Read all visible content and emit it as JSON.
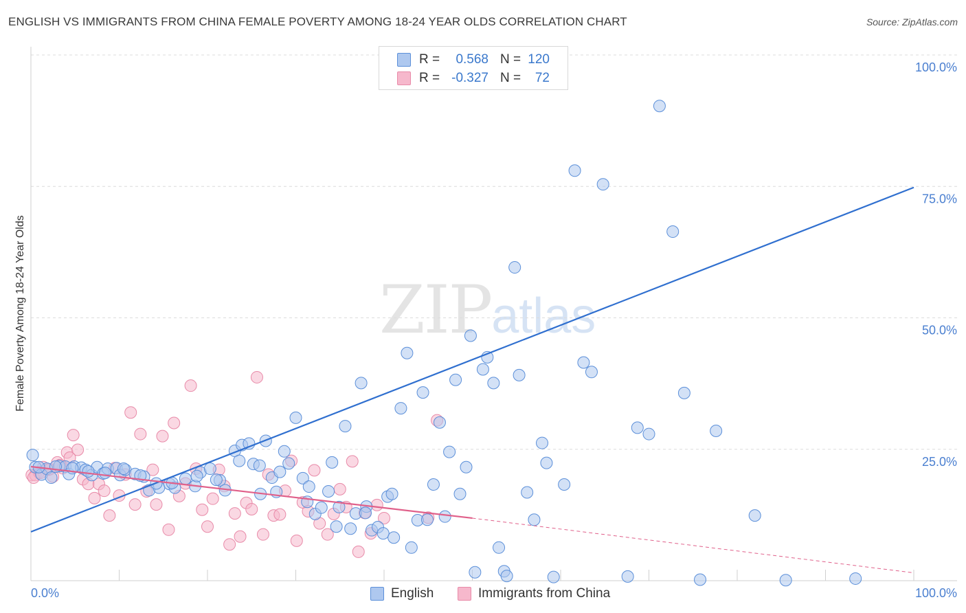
{
  "title": "ENGLISH VS IMMIGRANTS FROM CHINA FEMALE POVERTY AMONG 18-24 YEAR OLDS CORRELATION CHART",
  "source": "Source: ZipAtlas.com",
  "watermark": {
    "zip": "ZIP",
    "atlas": "atlas"
  },
  "colors": {
    "english_fill": "#aec8ef",
    "english_stroke": "#5b8fd9",
    "english_line": "#2f6fcf",
    "china_fill": "#f6b8cc",
    "china_stroke": "#e88aa8",
    "china_line": "#e0608a",
    "grid": "#dcdcdc",
    "tick_text": "#4a7fd0"
  },
  "legend": {
    "rows": [
      {
        "r_label": "R =",
        "r_value": "0.568",
        "n_label": "N =",
        "n_value": "120"
      },
      {
        "r_label": "R =",
        "r_value": "-0.327",
        "n_label": "N =",
        "n_value": "72"
      }
    ]
  },
  "bottom_legend": {
    "english": "English",
    "china": "Immigrants from China"
  },
  "chart_data": {
    "type": "scatter",
    "title": "ENGLISH VS IMMIGRANTS FROM CHINA FEMALE POVERTY AMONG 18-24 YEAR OLDS CORRELATION CHART",
    "xlabel": "",
    "ylabel": "Female Poverty Among 18-24 Year Olds",
    "xlim": [
      0,
      100
    ],
    "ylim": [
      0,
      100
    ],
    "x_tick_labels": [
      "0.0%",
      "100.0%"
    ],
    "y_ticks": [
      25,
      50,
      75,
      100
    ],
    "y_tick_labels": [
      "25.0%",
      "50.0%",
      "75.0%",
      "100.0%"
    ],
    "grid": "horizontal dashed",
    "legend_position": "top-center",
    "series": [
      {
        "name": "English",
        "r": 0.568,
        "n": 120,
        "trend": {
          "x": [
            0,
            100
          ],
          "y": [
            9.3,
            74.8
          ]
        },
        "points": [
          [
            0.2,
            23.9
          ],
          [
            0.5,
            21.6
          ],
          [
            1.2,
            20.2
          ],
          [
            1.8,
            21.3
          ],
          [
            2.3,
            19.6
          ],
          [
            3.2,
            21.8
          ],
          [
            3.9,
            21.7
          ],
          [
            4.3,
            20.3
          ],
          [
            4.9,
            21.7
          ],
          [
            5.7,
            21.5
          ],
          [
            6.2,
            21.1
          ],
          [
            6.9,
            20.1
          ],
          [
            7.5,
            21.6
          ],
          [
            8.2,
            20.4
          ],
          [
            8.7,
            21.3
          ],
          [
            9.7,
            21.4
          ],
          [
            10.1,
            20.1
          ],
          [
            10.7,
            21.1
          ],
          [
            11.8,
            20.3
          ],
          [
            12.8,
            19.8
          ],
          [
            13.4,
            17.2
          ],
          [
            14.5,
            17.7
          ],
          [
            15.7,
            18.4
          ],
          [
            16.3,
            17.7
          ],
          [
            17.5,
            19.4
          ],
          [
            18.6,
            18.0
          ],
          [
            19.2,
            20.6
          ],
          [
            20.3,
            21.3
          ],
          [
            21.4,
            19.1
          ],
          [
            22.0,
            17.2
          ],
          [
            23.1,
            24.7
          ],
          [
            23.9,
            25.8
          ],
          [
            24.7,
            26.1
          ],
          [
            25.2,
            22.2
          ],
          [
            26.0,
            16.5
          ],
          [
            26.6,
            26.6
          ],
          [
            27.3,
            19.6
          ],
          [
            27.8,
            16.9
          ],
          [
            28.7,
            24.6
          ],
          [
            29.2,
            22.3
          ],
          [
            30.0,
            31.0
          ],
          [
            30.8,
            19.5
          ],
          [
            31.5,
            17.9
          ],
          [
            32.2,
            12.7
          ],
          [
            32.9,
            13.9
          ],
          [
            33.7,
            17.0
          ],
          [
            34.1,
            22.5
          ],
          [
            34.9,
            14.0
          ],
          [
            35.6,
            29.4
          ],
          [
            36.2,
            9.9
          ],
          [
            36.8,
            12.8
          ],
          [
            37.4,
            37.6
          ],
          [
            38.0,
            14.1
          ],
          [
            38.6,
            9.6
          ],
          [
            39.3,
            10.2
          ],
          [
            39.9,
            9.0
          ],
          [
            40.4,
            16.0
          ],
          [
            41.1,
            8.2
          ],
          [
            41.9,
            32.8
          ],
          [
            42.6,
            43.3
          ],
          [
            43.1,
            6.3
          ],
          [
            43.8,
            11.5
          ],
          [
            44.4,
            35.8
          ],
          [
            44.9,
            11.6
          ],
          [
            45.6,
            18.3
          ],
          [
            46.3,
            30.1
          ],
          [
            46.9,
            12.2
          ],
          [
            47.4,
            24.5
          ],
          [
            48.1,
            38.2
          ],
          [
            48.6,
            16.5
          ],
          [
            49.3,
            21.6
          ],
          [
            49.8,
            46.6
          ],
          [
            50.3,
            1.6
          ],
          [
            51.2,
            40.2
          ],
          [
            51.7,
            42.5
          ],
          [
            52.4,
            37.6
          ],
          [
            53.0,
            6.3
          ],
          [
            53.6,
            1.8
          ],
          [
            53.9,
            0.9
          ],
          [
            54.8,
            59.6
          ],
          [
            55.3,
            39.1
          ],
          [
            56.2,
            16.8
          ],
          [
            57.0,
            11.6
          ],
          [
            57.9,
            26.2
          ],
          [
            58.4,
            22.4
          ],
          [
            59.2,
            0.7
          ],
          [
            60.4,
            18.3
          ],
          [
            61.6,
            78.0
          ],
          [
            62.6,
            41.5
          ],
          [
            63.5,
            39.7
          ],
          [
            64.8,
            75.4
          ],
          [
            67.6,
            0.8
          ],
          [
            68.7,
            29.1
          ],
          [
            70.0,
            27.9
          ],
          [
            71.2,
            90.3
          ],
          [
            72.7,
            66.4
          ],
          [
            74.0,
            35.7
          ],
          [
            75.8,
            0.2
          ],
          [
            77.6,
            28.5
          ],
          [
            82.0,
            12.4
          ],
          [
            85.5,
            0.1
          ],
          [
            93.4,
            0.4
          ],
          [
            0.9,
            21.6
          ],
          [
            2.8,
            21.7
          ],
          [
            4.7,
            21.4
          ],
          [
            6.5,
            20.8
          ],
          [
            8.4,
            20.5
          ],
          [
            10.5,
            21.3
          ],
          [
            12.4,
            20.0
          ],
          [
            14.2,
            18.5
          ],
          [
            16.0,
            18.6
          ],
          [
            18.8,
            19.9
          ],
          [
            21.0,
            19.2
          ],
          [
            23.6,
            22.8
          ],
          [
            25.9,
            21.9
          ],
          [
            28.2,
            20.7
          ],
          [
            31.3,
            15.0
          ],
          [
            34.6,
            10.3
          ],
          [
            37.9,
            12.9
          ],
          [
            40.9,
            16.5
          ]
        ]
      },
      {
        "name": "Immigrants from China",
        "r": -0.327,
        "n": 72,
        "trend": {
          "x": [
            0,
            50
          ],
          "y": [
            21.7,
            11.9
          ]
        },
        "trend_extension": {
          "x": [
            50,
            100
          ],
          "y": [
            11.9,
            1.5
          ]
        },
        "points": [
          [
            0.1,
            20.1
          ],
          [
            0.5,
            20.1
          ],
          [
            0.9,
            20.6
          ],
          [
            1.4,
            21.6
          ],
          [
            1.9,
            21.1
          ],
          [
            2.5,
            19.8
          ],
          [
            3.0,
            22.5
          ],
          [
            3.6,
            21.4
          ],
          [
            4.1,
            24.4
          ],
          [
            4.8,
            27.7
          ],
          [
            5.3,
            24.9
          ],
          [
            5.9,
            19.3
          ],
          [
            6.5,
            18.4
          ],
          [
            7.2,
            15.7
          ],
          [
            7.7,
            18.4
          ],
          [
            8.3,
            17.1
          ],
          [
            8.9,
            12.4
          ],
          [
            9.5,
            21.4
          ],
          [
            10.0,
            16.2
          ],
          [
            10.7,
            20.2
          ],
          [
            11.3,
            32.0
          ],
          [
            11.8,
            14.5
          ],
          [
            12.4,
            27.9
          ],
          [
            13.1,
            17.0
          ],
          [
            13.8,
            21.1
          ],
          [
            14.2,
            14.5
          ],
          [
            14.9,
            27.5
          ],
          [
            15.6,
            9.7
          ],
          [
            16.2,
            30.0
          ],
          [
            16.8,
            16.1
          ],
          [
            17.5,
            18.5
          ],
          [
            18.1,
            37.1
          ],
          [
            18.7,
            21.3
          ],
          [
            19.4,
            13.5
          ],
          [
            20.0,
            10.3
          ],
          [
            20.6,
            15.6
          ],
          [
            21.3,
            21.1
          ],
          [
            21.9,
            18.0
          ],
          [
            22.5,
            6.9
          ],
          [
            23.1,
            12.8
          ],
          [
            23.7,
            8.4
          ],
          [
            24.4,
            14.8
          ],
          [
            25.0,
            13.6
          ],
          [
            25.6,
            38.7
          ],
          [
            26.3,
            8.8
          ],
          [
            26.9,
            20.2
          ],
          [
            27.5,
            12.4
          ],
          [
            28.2,
            12.6
          ],
          [
            28.8,
            17.1
          ],
          [
            29.5,
            22.8
          ],
          [
            30.1,
            7.6
          ],
          [
            30.8,
            14.9
          ],
          [
            31.4,
            13.2
          ],
          [
            32.1,
            21.0
          ],
          [
            32.7,
            10.9
          ],
          [
            33.6,
            8.8
          ],
          [
            34.3,
            12.7
          ],
          [
            35.0,
            17.4
          ],
          [
            35.7,
            14.0
          ],
          [
            36.4,
            22.7
          ],
          [
            37.1,
            5.5
          ],
          [
            37.8,
            12.9
          ],
          [
            38.5,
            9.0
          ],
          [
            39.2,
            14.4
          ],
          [
            40.0,
            11.9
          ],
          [
            0.3,
            19.6
          ],
          [
            1.1,
            20.5
          ],
          [
            2.1,
            21.2
          ],
          [
            3.3,
            22.0
          ],
          [
            4.4,
            23.4
          ],
          [
            46.0,
            30.5
          ],
          [
            45.0,
            12.0
          ]
        ]
      }
    ]
  }
}
